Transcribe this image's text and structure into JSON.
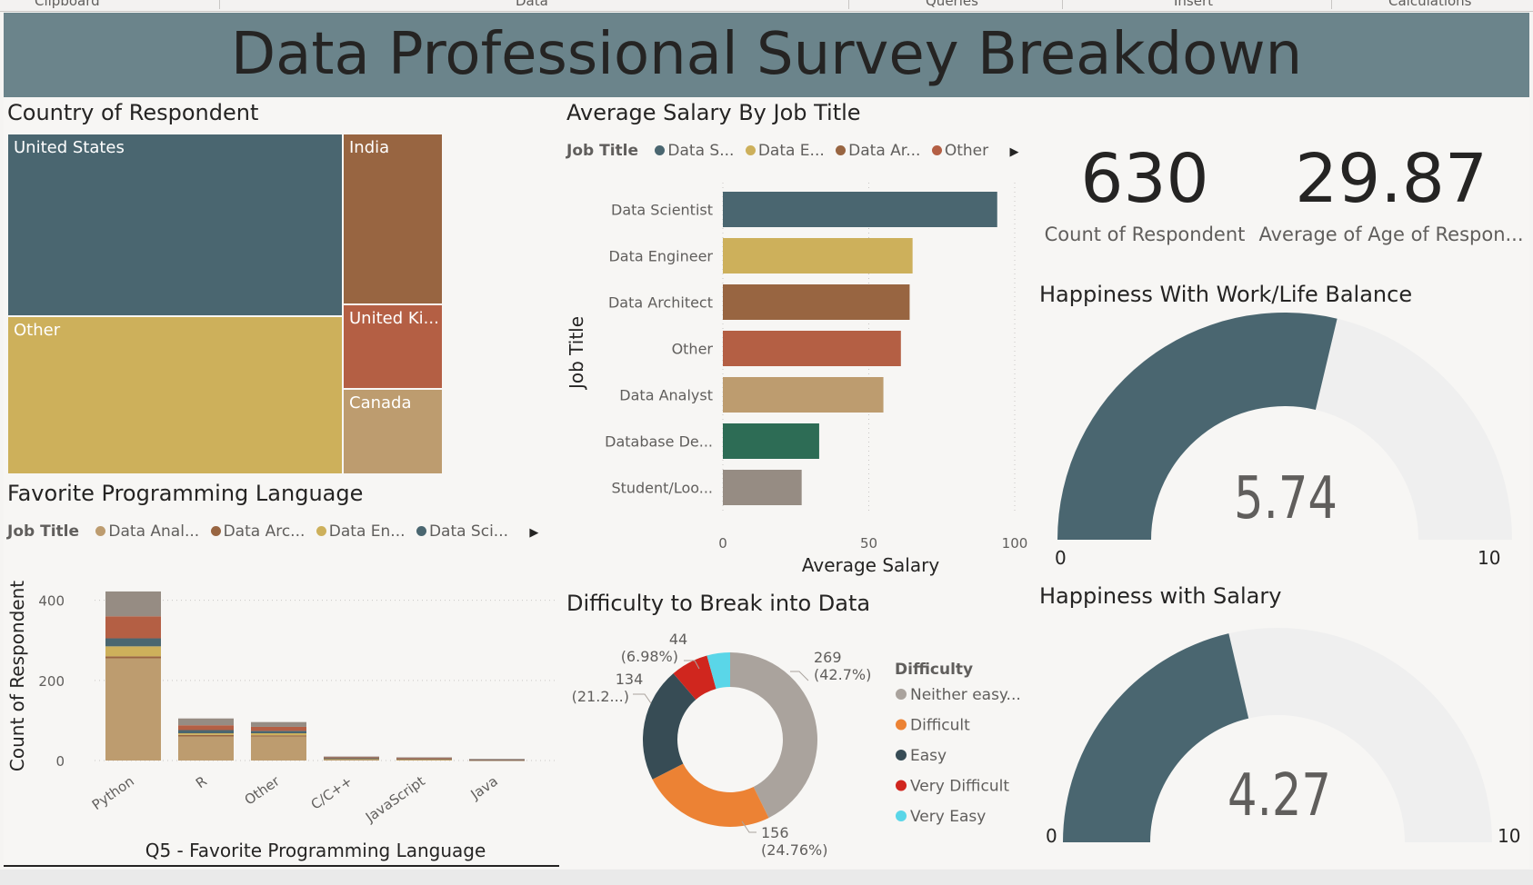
{
  "ribbon": {
    "groups": [
      "Clipboard",
      "Data",
      "Queries",
      "Insert",
      "Calculations"
    ]
  },
  "report_title": "Data Professional Survey Breakdown",
  "country": {
    "title": "Country of Respondent",
    "tiles": [
      {
        "label": "United States",
        "color": "#4a6670"
      },
      {
        "label": "India",
        "color": "#986541"
      },
      {
        "label": "Other",
        "color": "#cdb05b"
      },
      {
        "label": "United Ki...",
        "color": "#b45f44"
      },
      {
        "label": "Canada",
        "color": "#bd9c6f"
      }
    ]
  },
  "salary": {
    "title": "Average Salary By Job Title",
    "legend_title": "Job Title",
    "legend_items": [
      {
        "label": "Data S...",
        "color": "#4a6670"
      },
      {
        "label": "Data E...",
        "color": "#cdb05b"
      },
      {
        "label": "Data Ar...",
        "color": "#986541"
      },
      {
        "label": "Other",
        "color": "#b45f44"
      }
    ],
    "legend_more": "▶",
    "xlabel": "Average Salary",
    "ylabel": "Job Title"
  },
  "language": {
    "title": "Favorite Programming Language",
    "legend_title": "Job Title",
    "legend_items": [
      {
        "label": "Data Anal...",
        "color": "#bd9c6f"
      },
      {
        "label": "Data Arc...",
        "color": "#986541"
      },
      {
        "label": "Data En...",
        "color": "#cdb05b"
      },
      {
        "label": "Data Sci...",
        "color": "#4a6670"
      }
    ],
    "legend_more": "▶",
    "xlabel": "Q5 - Favorite Programming Language",
    "ylabel": "Count of Respondent"
  },
  "difficulty": {
    "title": "Difficulty to Break into Data",
    "legend_title": "Difficulty",
    "labels": [
      {
        "value": "269",
        "pct": "(42.7%)"
      },
      {
        "value": "156",
        "pct": "(24.76%)"
      },
      {
        "value": "134",
        "pct": "(21.2...)"
      },
      {
        "value": "44",
        "pct": "(6.98%)"
      }
    ]
  },
  "cards": {
    "count_value": "630",
    "count_label": "Count of Respondent",
    "age_value": "29.87",
    "age_label": "Average of Age of Respon..."
  },
  "gauge_balance": {
    "title": "Happiness With Work/Life Balance",
    "value_text": "5.74",
    "value": 5.74,
    "min": "0",
    "max": "10",
    "fill": "#4a6670",
    "track": "#efefef"
  },
  "gauge_salary": {
    "title": "Happiness with Salary",
    "value_text": "4.27",
    "value": 4.27,
    "min": "0",
    "max": "10",
    "fill": "#4a6670",
    "track": "#efefef"
  },
  "chart_data": [
    {
      "type": "bar",
      "orientation": "horizontal",
      "title": "Average Salary By Job Title",
      "categories": [
        "Data Scientist",
        "Data Engineer",
        "Data Architect",
        "Other",
        "Data Analyst",
        "Database De...",
        "Student/Loo..."
      ],
      "values": [
        94,
        65,
        64,
        61,
        55,
        33,
        27
      ],
      "colors": [
        "#4a6670",
        "#cdb05b",
        "#986541",
        "#b45f44",
        "#bd9c6f",
        "#2d6c55",
        "#968c83"
      ],
      "xlabel": "Average Salary",
      "ylabel": "Job Title",
      "xlim": [
        0,
        100
      ],
      "xticks": [
        "0",
        "50",
        "100"
      ],
      "grid": true
    },
    {
      "type": "bar",
      "stacked": true,
      "title": "Favorite Programming Language",
      "categories": [
        "Python",
        "R",
        "Other",
        "C/C++",
        "JavaScript",
        "Java"
      ],
      "series": [
        {
          "name": "Data Anal...",
          "color": "#bd9c6f",
          "values": [
            255,
            60,
            60,
            4,
            3,
            1
          ]
        },
        {
          "name": "Data Arc...",
          "color": "#986541",
          "values": [
            5,
            4,
            3,
            0,
            0,
            0
          ]
        },
        {
          "name": "Data En...",
          "color": "#cdb05b",
          "values": [
            25,
            4,
            5,
            1,
            1,
            0
          ]
        },
        {
          "name": "Data Sci...",
          "color": "#4a6670",
          "values": [
            20,
            8,
            6,
            1,
            1,
            1
          ]
        },
        {
          "name": "",
          "color": "#b45f44",
          "values": [
            55,
            12,
            10,
            2,
            1,
            1
          ]
        },
        {
          "name": "",
          "color": "#968c83",
          "values": [
            62,
            17,
            12,
            2,
            2,
            1
          ]
        }
      ],
      "xlabel": "Q5 - Favorite Programming Language",
      "ylabel": "Count of Respondent",
      "ylim": [
        0,
        450
      ],
      "yticks": [
        "0",
        "200",
        "400"
      ],
      "grid": true
    },
    {
      "type": "pie",
      "donut": true,
      "title": "Difficulty to Break into Data",
      "categories": [
        "Neither easy...",
        "Difficult",
        "Easy",
        "Very Difficult",
        "Very Easy"
      ],
      "values": [
        269,
        156,
        134,
        44,
        27
      ],
      "colors": [
        "#aaa39d",
        "#ec8234",
        "#374c55",
        "#d0261e",
        "#5ad6e8"
      ]
    }
  ]
}
